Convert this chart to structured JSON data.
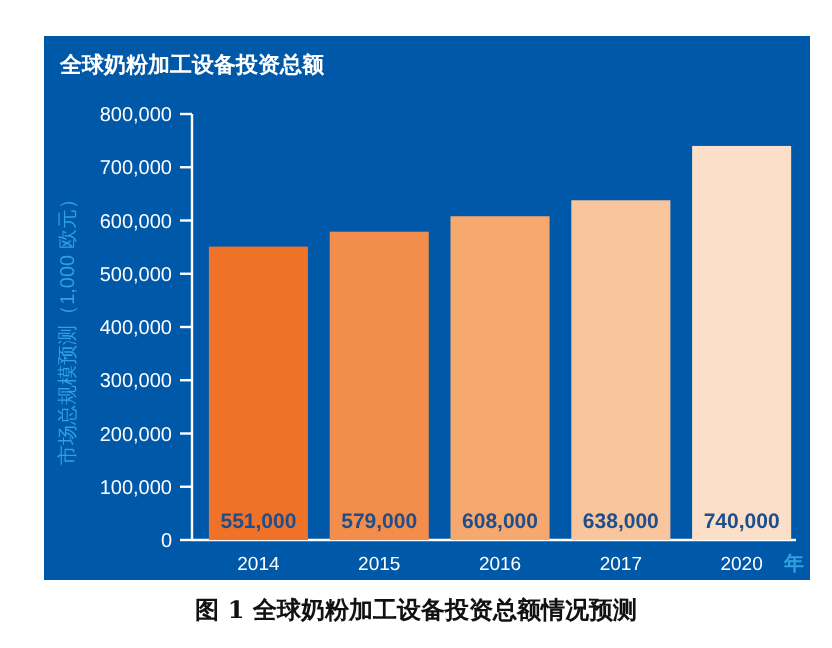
{
  "chart_data": {
    "type": "bar",
    "title": "全球奶粉加工设备投资总额",
    "ylabel": "市场总规模预测（1,000 欧元）",
    "xlabel": "年",
    "categories": [
      "2014",
      "2015",
      "2016",
      "2017",
      "2020"
    ],
    "values": [
      551000,
      579000,
      608000,
      638000,
      740000
    ],
    "colors": [
      "#f07228",
      "#f38d4b",
      "#f6a86f",
      "#f8c59c",
      "#fbdfc8"
    ],
    "ylim": [
      0,
      800000
    ],
    "yticks": [
      {
        "value": 0,
        "label": "0"
      },
      {
        "value": 100000,
        "label": "100,000"
      },
      {
        "value": 200000,
        "label": "200,000"
      },
      {
        "value": 300000,
        "label": "300,000"
      },
      {
        "value": 400000,
        "label": "400,000"
      },
      {
        "value": 500000,
        "label": "500,000"
      },
      {
        "value": 600000,
        "label": "600,000"
      },
      {
        "value": 700000,
        "label": "700,000"
      },
      {
        "value": 800000,
        "label": "800,000"
      }
    ],
    "value_labels": [
      "551,000",
      "579,000",
      "608,000",
      "638,000",
      "740,000"
    ],
    "annotations": [
      "图 1  全球奶粉加工设备投资总额情况预测"
    ]
  }
}
